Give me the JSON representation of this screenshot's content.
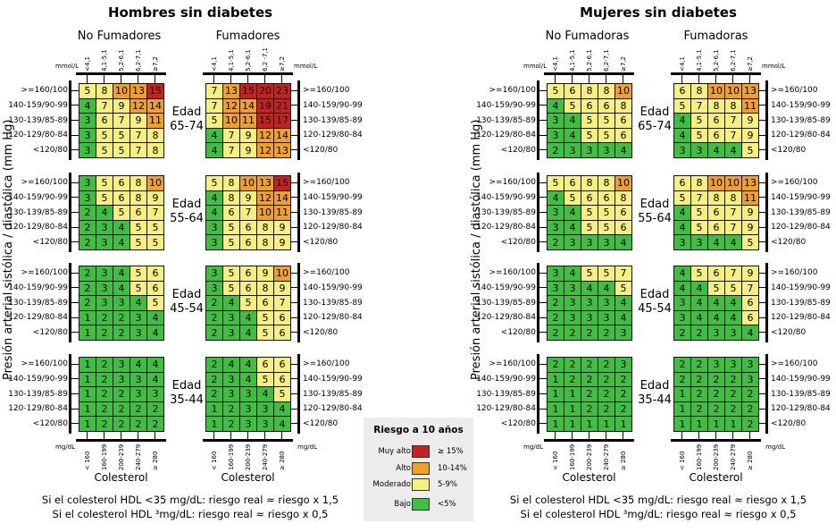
{
  "colors": {
    "muy_alto": "#c8201c",
    "alto": "#f0a024",
    "moderado": "#f7f07e",
    "bajo": "#3fbf3f"
  },
  "legend": {
    "title": "Riesgo a 10 años",
    "items": [
      {
        "name": "Muy alto",
        "range": "≥ 15%",
        "color_key": "muy_alto"
      },
      {
        "name": "Alto",
        "range": "10-14%",
        "color_key": "alto"
      },
      {
        "name": "Moderado",
        "range": "5-9%",
        "color_key": "moderado"
      },
      {
        "name": "Bajo",
        "range": "<5%",
        "color_key": "bajo"
      }
    ]
  },
  "chart_data": {
    "type": "heatmap",
    "y_axis_label": "Presión arterial sistólica / diastólica (mm Hg)",
    "x_axis_label": "Colesterol",
    "bp_rows": [
      ">=160/100",
      "140-159/90-99",
      "130-139/85-89",
      "120-129/80-84",
      "<120/80"
    ],
    "chol_mmol_unit": "mmol/L",
    "chol_mmol": [
      "<4,1",
      "4,1-5,1",
      "5,2-6,1",
      "6,2-7,1",
      "≥7,2"
    ],
    "chol_mmol_smokers_men": [
      "<4,1",
      "4,1-5,1",
      "5,2-6,1",
      "6,2 -7,1",
      "≥7,2"
    ],
    "chol_mgdl_unit": "mg/dL",
    "chol_mgdl": [
      "< 160",
      "160-199",
      "200-239",
      "240-279",
      "≥ 280"
    ],
    "age_prefix": "Edad",
    "panels": [
      {
        "title": "Hombres sin diabetes",
        "groups": [
          "No Fumadores",
          "Fumadores"
        ],
        "notes": [
          "Si el colesterol HDL <35 mg/dL: riesgo real ≈ riesgo x 1,5",
          "Si el colesterol HDL ³mg/dL: riesgo real ≈ riesgo x 0,5"
        ],
        "ages": [
          {
            "age": "65-74",
            "non_smokers": [
              [
                5,
                8,
                10,
                13,
                15
              ],
              [
                4,
                7,
                9,
                12,
                14
              ],
              [
                3,
                6,
                7,
                9,
                11
              ],
              [
                3,
                5,
                5,
                7,
                8
              ],
              [
                3,
                5,
                5,
                7,
                8
              ]
            ],
            "smokers": [
              [
                7,
                13,
                15,
                20,
                23
              ],
              [
                7,
                12,
                14,
                19,
                21
              ],
              [
                5,
                10,
                11,
                15,
                17
              ],
              [
                4,
                7,
                9,
                12,
                14
              ],
              [
                4,
                7,
                9,
                12,
                13
              ]
            ]
          },
          {
            "age": "55-64",
            "non_smokers": [
              [
                3,
                5,
                6,
                8,
                10
              ],
              [
                3,
                5,
                6,
                8,
                9
              ],
              [
                2,
                4,
                5,
                6,
                7
              ],
              [
                2,
                3,
                4,
                5,
                5
              ],
              [
                2,
                3,
                4,
                5,
                5
              ]
            ],
            "smokers": [
              [
                5,
                8,
                10,
                13,
                15
              ],
              [
                4,
                8,
                9,
                12,
                14
              ],
              [
                4,
                6,
                7,
                10,
                11
              ],
              [
                3,
                5,
                6,
                8,
                9
              ],
              [
                3,
                5,
                6,
                8,
                9
              ]
            ]
          },
          {
            "age": "45-54",
            "non_smokers": [
              [
                2,
                3,
                4,
                5,
                6
              ],
              [
                2,
                3,
                4,
                5,
                6
              ],
              [
                2,
                3,
                3,
                4,
                5
              ],
              [
                1,
                2,
                2,
                3,
                4
              ],
              [
                1,
                2,
                2,
                3,
                4
              ]
            ],
            "smokers": [
              [
                3,
                5,
                6,
                9,
                10
              ],
              [
                3,
                5,
                6,
                8,
                9
              ],
              [
                2,
                4,
                5,
                6,
                7
              ],
              [
                2,
                3,
                4,
                5,
                6
              ],
              [
                2,
                3,
                4,
                5,
                6
              ]
            ]
          },
          {
            "age": "35-44",
            "non_smokers": [
              [
                1,
                2,
                3,
                4,
                4
              ],
              [
                1,
                2,
                3,
                3,
                4
              ],
              [
                1,
                2,
                2,
                3,
                3
              ],
              [
                1,
                2,
                2,
                2,
                2
              ],
              [
                1,
                2,
                2,
                2,
                2
              ]
            ],
            "smokers": [
              [
                2,
                4,
                4,
                6,
                6
              ],
              [
                2,
                3,
                4,
                5,
                6
              ],
              [
                2,
                3,
                3,
                4,
                5
              ],
              [
                1,
                2,
                3,
                3,
                4
              ],
              [
                1,
                2,
                3,
                3,
                4
              ]
            ]
          }
        ]
      },
      {
        "title": "Mujeres sin diabetes",
        "groups": [
          "No Fumadoras",
          "Fumadoras"
        ],
        "notes": [
          "Si el colesterol HDL <35 mg/dL: riesgo real ≈ riesgo x 1,5",
          "Si el colesterol HDL ³mg/dL: riesgo real ≈ riesgo x 0,5"
        ],
        "ages": [
          {
            "age": "65-74",
            "non_smokers": [
              [
                5,
                6,
                8,
                8,
                10
              ],
              [
                4,
                5,
                6,
                6,
                8
              ],
              [
                3,
                4,
                5,
                5,
                6
              ],
              [
                3,
                4,
                5,
                5,
                6
              ],
              [
                2,
                3,
                3,
                3,
                4
              ]
            ],
            "smokers": [
              [
                6,
                8,
                10,
                10,
                13
              ],
              [
                5,
                7,
                8,
                8,
                11
              ],
              [
                4,
                5,
                6,
                7,
                9
              ],
              [
                4,
                5,
                6,
                7,
                9
              ],
              [
                3,
                3,
                4,
                4,
                5
              ]
            ]
          },
          {
            "age": "55-64",
            "non_smokers": [
              [
                5,
                6,
                8,
                8,
                10
              ],
              [
                4,
                5,
                6,
                6,
                8
              ],
              [
                3,
                4,
                5,
                5,
                6
              ],
              [
                3,
                4,
                5,
                5,
                6
              ],
              [
                2,
                3,
                3,
                3,
                4
              ]
            ],
            "smokers": [
              [
                6,
                8,
                10,
                10,
                13
              ],
              [
                5,
                7,
                8,
                8,
                11
              ],
              [
                4,
                5,
                6,
                7,
                9
              ],
              [
                4,
                5,
                6,
                7,
                9
              ],
              [
                3,
                3,
                4,
                4,
                5
              ]
            ]
          },
          {
            "age": "45-54",
            "non_smokers": [
              [
                3,
                4,
                5,
                5,
                7
              ],
              [
                3,
                3,
                4,
                4,
                5
              ],
              [
                2,
                3,
                3,
                3,
                4
              ],
              [
                2,
                3,
                3,
                3,
                4
              ],
              [
                2,
                2,
                2,
                2,
                3
              ]
            ],
            "smokers": [
              [
                4,
                5,
                6,
                7,
                9
              ],
              [
                4,
                4,
                5,
                5,
                7
              ],
              [
                3,
                4,
                4,
                4,
                6
              ],
              [
                3,
                4,
                4,
                4,
                6
              ],
              [
                2,
                2,
                3,
                3,
                4
              ]
            ]
          },
          {
            "age": "35-44",
            "non_smokers": [
              [
                2,
                2,
                2,
                2,
                3
              ],
              [
                1,
                2,
                2,
                2,
                2
              ],
              [
                1,
                1,
                2,
                2,
                2
              ],
              [
                1,
                1,
                2,
                2,
                2
              ],
              [
                1,
                1,
                1,
                1,
                1
              ]
            ],
            "smokers": [
              [
                2,
                2,
                3,
                3,
                3
              ],
              [
                2,
                2,
                2,
                2,
                3
              ],
              [
                1,
                2,
                2,
                2,
                2
              ],
              [
                1,
                2,
                2,
                2,
                2
              ],
              [
                1,
                1,
                1,
                1,
                2
              ]
            ]
          }
        ]
      }
    ]
  }
}
